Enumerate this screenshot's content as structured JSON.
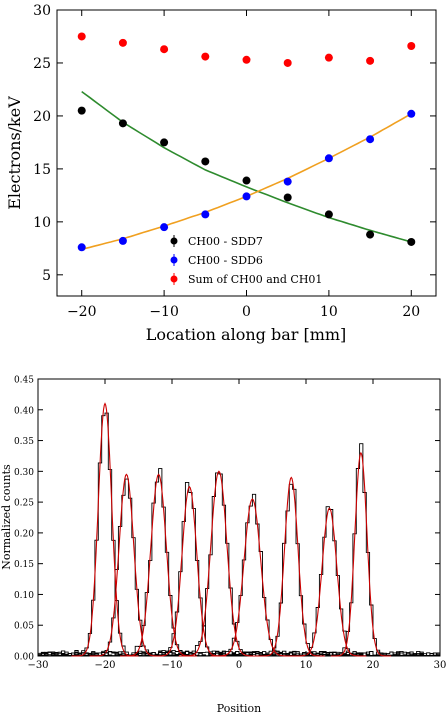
{
  "chart_data": [
    {
      "type": "scatter",
      "title": "",
      "xlabel": "Location along bar [mm]",
      "ylabel": "Electrons/keV",
      "xlim": [
        -23,
        23
      ],
      "ylim": [
        3,
        30
      ],
      "xticks": [
        -20,
        -10,
        0,
        10,
        20
      ],
      "yticks": [
        5,
        10,
        15,
        20,
        25,
        30
      ],
      "legend_position": "lower-center",
      "series": [
        {
          "name": "CH00 - SDD7",
          "color": "#000000",
          "x": [
            -20,
            -15,
            -10,
            -5,
            0,
            5,
            10,
            15,
            20
          ],
          "y": [
            20.5,
            19.3,
            17.5,
            15.7,
            13.9,
            12.3,
            10.7,
            8.8,
            8.1
          ],
          "fit": [
            22.3,
            19.4,
            17.0,
            14.9,
            13.3,
            11.8,
            10.4,
            9.2,
            8.1
          ],
          "fit_color": "#2e8b2e"
        },
        {
          "name": "CH00 - SDD6",
          "color": "#0000ff",
          "x": [
            -20,
            -15,
            -10,
            -5,
            0,
            5,
            10,
            15,
            20
          ],
          "y": [
            7.6,
            8.2,
            9.5,
            10.7,
            12.4,
            13.8,
            16.0,
            17.8,
            20.2
          ],
          "fit": [
            7.4,
            8.4,
            9.6,
            10.9,
            12.4,
            14.1,
            16.0,
            18.0,
            20.2
          ],
          "fit_color": "#f0a020"
        },
        {
          "name": "Sum of CH00 and CH01",
          "color": "#ff0000",
          "x": [
            -20,
            -15,
            -10,
            -5,
            0,
            5,
            10,
            15,
            20
          ],
          "y": [
            27.5,
            26.9,
            26.3,
            25.6,
            25.3,
            25.0,
            25.5,
            25.2,
            26.6
          ]
        }
      ]
    },
    {
      "type": "line",
      "title": "",
      "xlabel": "Position",
      "ylabel": "Normalized counts",
      "xlim": [
        -30,
        30
      ],
      "ylim": [
        0,
        0.45
      ],
      "xticks": [
        -30,
        -20,
        -10,
        0,
        10,
        20,
        30
      ],
      "yticks": [
        "0.00",
        "0.05",
        "0.10",
        "0.15",
        "0.20",
        "0.25",
        "0.30",
        "0.35",
        "0.40",
        "0.45"
      ],
      "histogram_color": "#000000",
      "fit_color": "#cc0000",
      "peaks": [
        {
          "center": -20.0,
          "amplitude": 0.41,
          "sigma": 1.0
        },
        {
          "center": -16.8,
          "amplitude": 0.295,
          "sigma": 1.1
        },
        {
          "center": -12.0,
          "amplitude": 0.295,
          "sigma": 1.15
        },
        {
          "center": -7.4,
          "amplitude": 0.275,
          "sigma": 1.1
        },
        {
          "center": -3.0,
          "amplitude": 0.3,
          "sigma": 1.2
        },
        {
          "center": 2.0,
          "amplitude": 0.255,
          "sigma": 1.25
        },
        {
          "center": 7.8,
          "amplitude": 0.29,
          "sigma": 1.0
        },
        {
          "center": 13.5,
          "amplitude": 0.24,
          "sigma": 1.1
        },
        {
          "center": 18.2,
          "amplitude": 0.33,
          "sigma": 0.9
        }
      ]
    }
  ]
}
